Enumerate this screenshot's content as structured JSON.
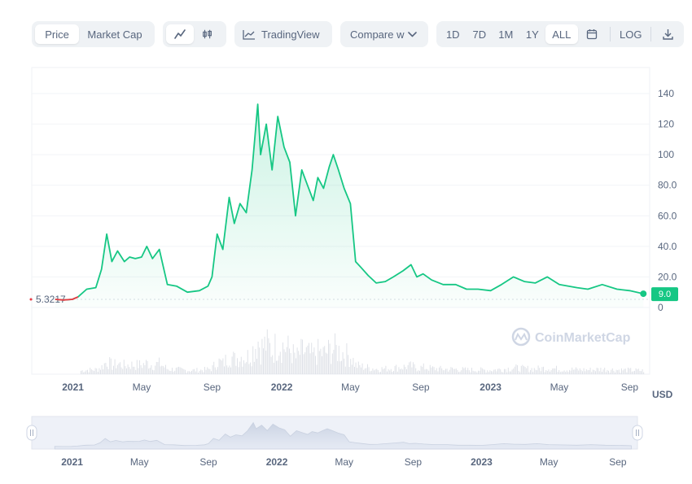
{
  "toolbar": {
    "metric_tabs": [
      {
        "label": "Price",
        "active": true
      },
      {
        "label": "Market Cap",
        "active": false
      }
    ],
    "chart_type_icons": [
      "line-chart-icon",
      "candlestick-icon"
    ],
    "tradingview_label": "TradingView",
    "compare_label": "Compare w",
    "ranges": [
      {
        "label": "1D",
        "active": false
      },
      {
        "label": "7D",
        "active": false
      },
      {
        "label": "1M",
        "active": false
      },
      {
        "label": "1Y",
        "active": false
      },
      {
        "label": "ALL",
        "active": true
      }
    ],
    "log_label": "LOG"
  },
  "chart_data": {
    "type": "line",
    "currency": "USD",
    "start_price_label": "5.3217",
    "current_price_label": "9.0",
    "watermark": "CoinMarketCap",
    "y_ticks": [
      "0",
      "20.0",
      "40.0",
      "60.0",
      "80.0",
      "100",
      "120",
      "140"
    ],
    "ylim": [
      0,
      140
    ],
    "x_ticks": [
      "2021",
      "May",
      "Sep",
      "2022",
      "May",
      "Sep",
      "2023",
      "May",
      "Sep"
    ],
    "x_ticks_bold": [
      true,
      false,
      false,
      true,
      false,
      false,
      true,
      false,
      false
    ],
    "x_tick_dates": [
      "2021-01-01",
      "2021-05-01",
      "2021-09-01",
      "2022-01-01",
      "2022-05-01",
      "2022-09-01",
      "2023-01-01",
      "2023-05-01",
      "2023-09-01"
    ],
    "xlim": [
      "2020-10-21",
      "2023-10-06"
    ],
    "series": [
      {
        "color_below_start": "#ea3943",
        "color": "#16c784",
        "points": [
          [
            "2020-12-01",
            5.3
          ],
          [
            "2020-12-15",
            4.9
          ],
          [
            "2020-12-31",
            5.3
          ],
          [
            "2021-01-10",
            7
          ],
          [
            "2021-01-25",
            12
          ],
          [
            "2021-02-10",
            13
          ],
          [
            "2021-02-20",
            25
          ],
          [
            "2021-03-01",
            48
          ],
          [
            "2021-03-10",
            30
          ],
          [
            "2021-03-20",
            37
          ],
          [
            "2021-04-01",
            30
          ],
          [
            "2021-04-10",
            33
          ],
          [
            "2021-04-20",
            32
          ],
          [
            "2021-05-01",
            33
          ],
          [
            "2021-05-10",
            40
          ],
          [
            "2021-05-20",
            32
          ],
          [
            "2021-06-01",
            38
          ],
          [
            "2021-06-15",
            15
          ],
          [
            "2021-07-01",
            14
          ],
          [
            "2021-07-20",
            10
          ],
          [
            "2021-08-10",
            11
          ],
          [
            "2021-08-25",
            14
          ],
          [
            "2021-09-01",
            20
          ],
          [
            "2021-09-10",
            48
          ],
          [
            "2021-09-20",
            38
          ],
          [
            "2021-10-01",
            72
          ],
          [
            "2021-10-10",
            55
          ],
          [
            "2021-10-20",
            68
          ],
          [
            "2021-10-31",
            62
          ],
          [
            "2021-11-10",
            90
          ],
          [
            "2021-11-20",
            133
          ],
          [
            "2021-11-25",
            100
          ],
          [
            "2021-12-05",
            120
          ],
          [
            "2021-12-15",
            90
          ],
          [
            "2021-12-25",
            125
          ],
          [
            "2022-01-05",
            105
          ],
          [
            "2022-01-15",
            95
          ],
          [
            "2022-01-25",
            60
          ],
          [
            "2022-02-05",
            90
          ],
          [
            "2022-02-15",
            80
          ],
          [
            "2022-02-25",
            70
          ],
          [
            "2022-03-05",
            85
          ],
          [
            "2022-03-15",
            78
          ],
          [
            "2022-03-25",
            92
          ],
          [
            "2022-04-01",
            100
          ],
          [
            "2022-04-10",
            90
          ],
          [
            "2022-04-20",
            78
          ],
          [
            "2022-05-01",
            68
          ],
          [
            "2022-05-10",
            30
          ],
          [
            "2022-05-20",
            26
          ],
          [
            "2022-06-01",
            21
          ],
          [
            "2022-06-15",
            16
          ],
          [
            "2022-07-01",
            17
          ],
          [
            "2022-07-15",
            20
          ],
          [
            "2022-08-01",
            24
          ],
          [
            "2022-08-15",
            28
          ],
          [
            "2022-08-25",
            20
          ],
          [
            "2022-09-05",
            22
          ],
          [
            "2022-09-20",
            18
          ],
          [
            "2022-10-10",
            15
          ],
          [
            "2022-11-01",
            15
          ],
          [
            "2022-11-20",
            12
          ],
          [
            "2022-12-10",
            12
          ],
          [
            "2023-01-01",
            11
          ],
          [
            "2023-01-20",
            15
          ],
          [
            "2023-02-10",
            20
          ],
          [
            "2023-03-01",
            17
          ],
          [
            "2023-03-20",
            16
          ],
          [
            "2023-04-10",
            20
          ],
          [
            "2023-05-01",
            15
          ],
          [
            "2023-06-01",
            13
          ],
          [
            "2023-06-20",
            12
          ],
          [
            "2023-07-15",
            15
          ],
          [
            "2023-08-10",
            12
          ],
          [
            "2023-09-01",
            11
          ],
          [
            "2023-09-25",
            9
          ]
        ]
      }
    ],
    "grid": true
  },
  "navigator": {
    "x_ticks": [
      "2021",
      "May",
      "Sep",
      "2022",
      "May",
      "Sep",
      "2023",
      "May",
      "Sep"
    ]
  }
}
